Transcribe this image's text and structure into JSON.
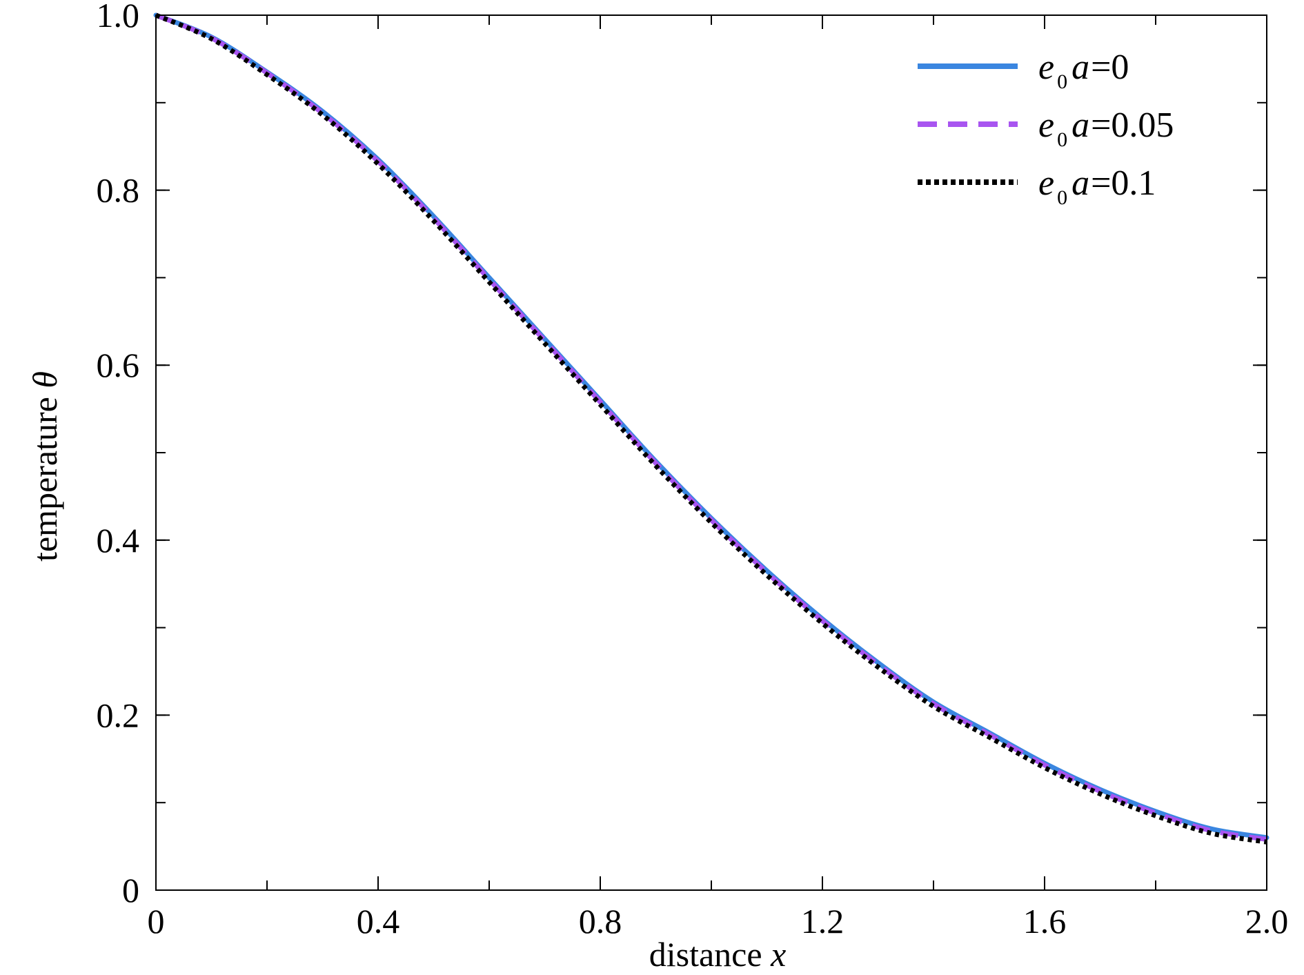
{
  "chart_data": {
    "type": "line",
    "xlabel": {
      "text": "distance ",
      "var": "x"
    },
    "ylabel": {
      "text": "temperature ",
      "var": "θ"
    },
    "xlim": [
      0,
      2.0
    ],
    "ylim": [
      0,
      1.0
    ],
    "x_ticks": [
      {
        "value": 0,
        "label": "0"
      },
      {
        "value": 0.4,
        "label": "0.4"
      },
      {
        "value": 0.8,
        "label": "0.8"
      },
      {
        "value": 1.2,
        "label": "1.2"
      },
      {
        "value": 1.6,
        "label": "1.6"
      },
      {
        "value": 2.0,
        "label": "2.0"
      }
    ],
    "y_ticks": [
      {
        "value": 0,
        "label": "0"
      },
      {
        "value": 0.2,
        "label": "0.2"
      },
      {
        "value": 0.4,
        "label": "0.4"
      },
      {
        "value": 0.6,
        "label": "0.6"
      },
      {
        "value": 0.8,
        "label": "0.8"
      },
      {
        "value": 1.0,
        "label": "1.0"
      }
    ],
    "x_minor_step": 0.2,
    "y_minor_step": 0.1,
    "grid": false,
    "legend_position": "top-right",
    "x": [
      0,
      0.1,
      0.2,
      0.3,
      0.4,
      0.5,
      0.6,
      0.7,
      0.8,
      0.9,
      1.0,
      1.1,
      1.2,
      1.3,
      1.4,
      1.5,
      1.6,
      1.7,
      1.8,
      1.9,
      2.0
    ],
    "series": [
      {
        "name": {
          "main": "e",
          "sub": "0",
          "rest": "a",
          "value": "=0"
        },
        "color": "#3a86e0",
        "style": "solid",
        "values": [
          1.0,
          0.975,
          0.935,
          0.89,
          0.835,
          0.77,
          0.7,
          0.63,
          0.56,
          0.49,
          0.425,
          0.365,
          0.31,
          0.26,
          0.215,
          0.18,
          0.145,
          0.115,
          0.09,
          0.07,
          0.06
        ]
      },
      {
        "name": {
          "main": "e",
          "sub": "0",
          "rest": "a",
          "value": "=0.05"
        },
        "color": "#a855f0",
        "style": "dashed",
        "values": [
          1.0,
          0.974,
          0.934,
          0.888,
          0.833,
          0.768,
          0.698,
          0.628,
          0.558,
          0.488,
          0.423,
          0.363,
          0.308,
          0.258,
          0.213,
          0.178,
          0.143,
          0.113,
          0.088,
          0.068,
          0.058
        ]
      },
      {
        "name": {
          "main": "e",
          "sub": "0",
          "rest": "a",
          "value": "=0.1"
        },
        "color": "#000000",
        "style": "dotted",
        "values": [
          1.0,
          0.973,
          0.932,
          0.886,
          0.83,
          0.765,
          0.695,
          0.625,
          0.555,
          0.485,
          0.42,
          0.36,
          0.305,
          0.255,
          0.21,
          0.175,
          0.14,
          0.11,
          0.085,
          0.065,
          0.055
        ]
      }
    ]
  }
}
